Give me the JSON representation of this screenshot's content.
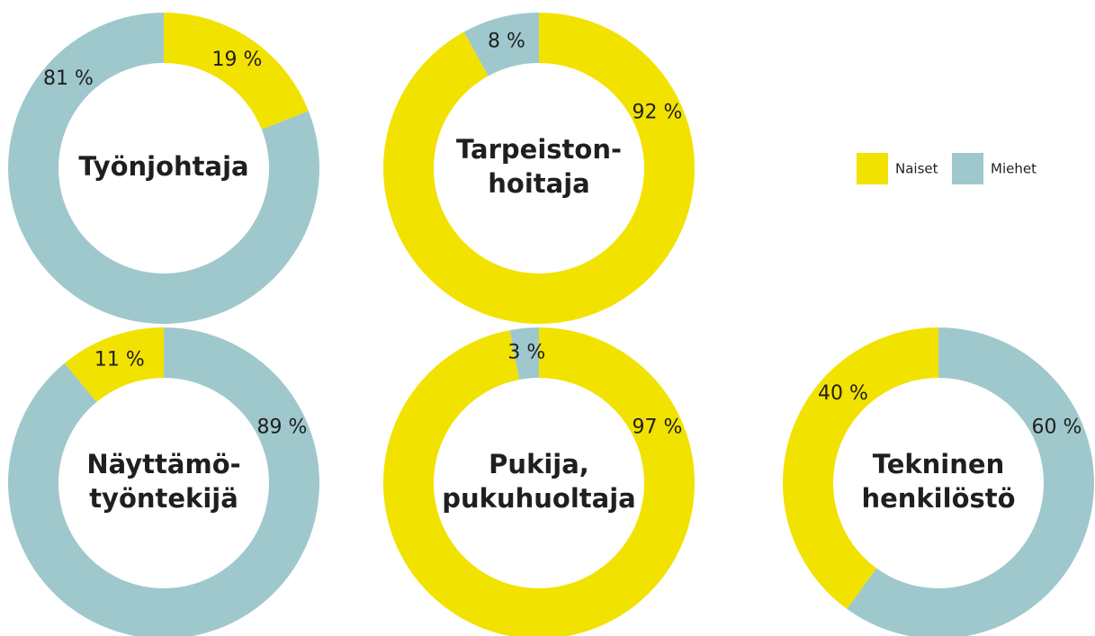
{
  "chart_data": {
    "type": "donut",
    "series": [
      {
        "name": "Naiset",
        "color": "#f2e200"
      },
      {
        "name": "Miehet",
        "color": "#9fc8cd"
      }
    ],
    "charts": [
      {
        "title": [
          "Työnjohtaja"
        ],
        "values": [
          19,
          81
        ],
        "value_labels": [
          "19 %",
          "81 %"
        ]
      },
      {
        "title": [
          "Tarpeiston-",
          "hoitaja"
        ],
        "values": [
          92,
          8
        ],
        "value_labels": [
          "92 %",
          "8 %"
        ]
      },
      {
        "title": [
          "Näyttämö-",
          "työntekijä"
        ],
        "values": [
          11,
          89
        ],
        "value_labels": [
          "11 %",
          "89 %"
        ]
      },
      {
        "title": [
          "Pukija,",
          "pukuhuoltaja"
        ],
        "values": [
          97,
          3
        ],
        "value_labels": [
          "97 %",
          "3 %"
        ]
      },
      {
        "title": [
          "Tekninen",
          "henkilöstö"
        ],
        "values": [
          40,
          60
        ],
        "value_labels": [
          "40 %",
          "60 %"
        ]
      }
    ]
  }
}
